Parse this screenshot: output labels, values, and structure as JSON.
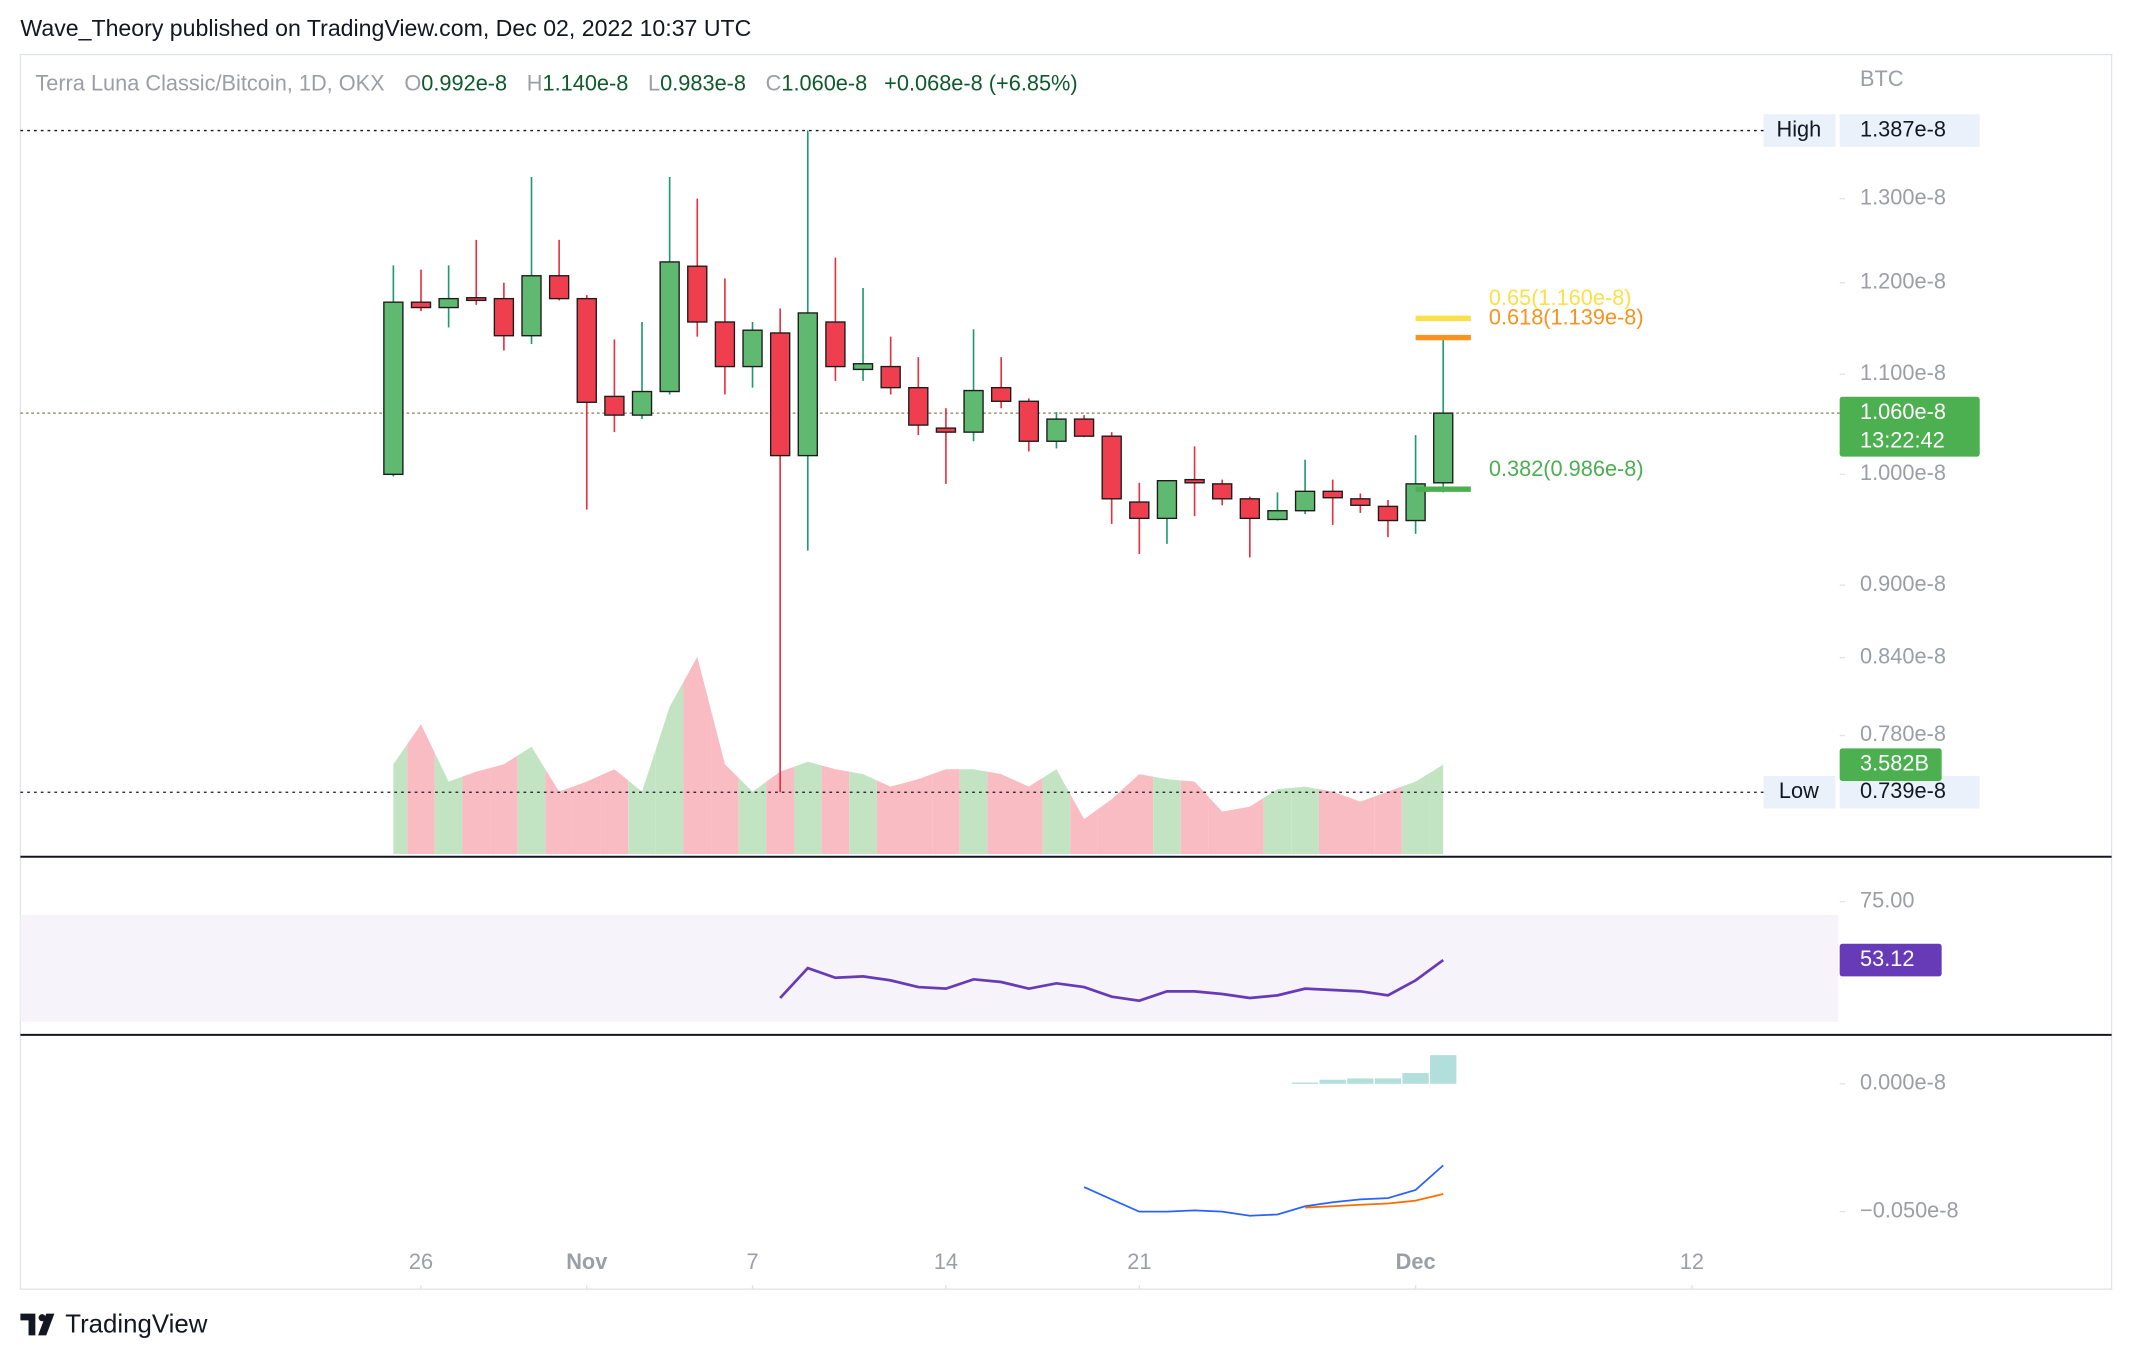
{
  "header": "Wave_Theory published on TradingView.com, Dec 02, 2022 10:37 UTC",
  "footer": "TradingView",
  "chart_data": {
    "type": "candlestick",
    "title": "Terra Luna Classic/Bitcoin, 1D, OKX",
    "legend": [
      {
        "key": "O",
        "value": "0.992e-8"
      },
      {
        "key": "H",
        "value": "1.140e-8"
      },
      {
        "key": "L",
        "value": "0.983e-8"
      },
      {
        "key": "C",
        "value": "1.060e-8"
      }
    ],
    "change": "+0.068e-8 (+6.85%)",
    "y_unit": "BTC",
    "log_scale": true,
    "ylim": [
      6.95e-09,
      1.491e-08
    ],
    "yticks": [
      {
        "value": 1.3e-08,
        "label": "1.300e-8"
      },
      {
        "value": 1.2e-08,
        "label": "1.200e-8"
      },
      {
        "value": 1.1e-08,
        "label": "1.100e-8"
      },
      {
        "value": 1e-08,
        "label": "1.000e-8"
      },
      {
        "value": 9e-09,
        "label": "0.900e-8"
      },
      {
        "value": 8.4e-09,
        "label": "0.840e-8"
      },
      {
        "value": 7.8e-09,
        "label": "0.780e-8"
      }
    ],
    "xlim": [
      -13.5,
      52.3
    ],
    "xticks": [
      {
        "value": 1,
        "label": "26"
      },
      {
        "value": 7,
        "label": "Nov"
      },
      {
        "value": 13,
        "label": "7"
      },
      {
        "value": 20,
        "label": "14"
      },
      {
        "value": 27,
        "label": "21"
      },
      {
        "value": 37,
        "label": "Dec"
      },
      {
        "value": 47,
        "label": "12"
      }
    ],
    "up_color": "#5fb970",
    "down_color": "#ef3f4f",
    "open": [
      1e-08,
      1.178e-08,
      1.172e-08,
      1.183e-08,
      1.182e-08,
      1.141e-08,
      1.208e-08,
      1.182e-08,
      1.077e-08,
      1.058e-08,
      1.082e-08,
      1.219e-08,
      1.156e-08,
      1.108e-08,
      1.144e-08,
      1.018e-08,
      1.156e-08,
      1.105e-08,
      1.108e-08,
      1.086e-08,
      1.045e-08,
      1.041e-08,
      1.086e-08,
      1.072e-08,
      1.032e-08,
      1.054e-08,
      1.037e-08,
      9.74e-09,
      9.59e-09,
      9.95e-09,
      9.91e-09,
      9.77e-09,
      9.58e-09,
      9.66e-09,
      9.84e-09,
      9.77e-09,
      9.7e-09,
      9.57e-09,
      9.92e-09
    ],
    "high": [
      1.22e-08,
      1.215e-08,
      1.22e-08,
      1.25e-08,
      1.2e-08,
      1.327e-08,
      1.25e-08,
      1.186e-08,
      1.137e-08,
      1.156e-08,
      1.327e-08,
      1.3e-08,
      1.205e-08,
      1.156e-08,
      1.171e-08,
      1.387e-08,
      1.229e-08,
      1.194e-08,
      1.14e-08,
      1.118e-08,
      1.065e-08,
      1.148e-08,
      1.118e-08,
      1.075e-08,
      1.061e-08,
      1.058e-08,
      1.041e-08,
      9.92e-09,
      9.94e-09,
      1.027e-08,
      9.95e-09,
      9.79e-09,
      9.83e-09,
      1.014e-08,
      9.95e-09,
      9.82e-09,
      9.76e-09,
      1.038e-08,
      1.14e-08
    ],
    "low": [
      9.98e-09,
      1.168e-08,
      1.15e-08,
      1.175e-08,
      1.125e-08,
      1.132e-08,
      1.18e-08,
      9.67e-09,
      1.041e-08,
      1.054e-08,
      1.079e-08,
      1.14e-08,
      1.079e-08,
      1.086e-08,
      7.39e-09,
      9.3e-09,
      1.093e-08,
      1.093e-08,
      1.079e-08,
      1.038e-08,
      9.91e-09,
      1.032e-08,
      1.065e-08,
      1.022e-08,
      1.025e-08,
      1.036e-08,
      9.54e-09,
      9.27e-09,
      9.36e-09,
      9.61e-09,
      9.71e-09,
      9.24e-09,
      9.57e-09,
      9.63e-09,
      9.53e-09,
      9.64e-09,
      9.42e-09,
      9.45e-09,
      9.83e-09
    ],
    "close": [
      1.178e-08,
      1.172e-08,
      1.182e-08,
      1.18e-08,
      1.141e-08,
      1.208e-08,
      1.182e-08,
      1.071e-08,
      1.058e-08,
      1.082e-08,
      1.224e-08,
      1.156e-08,
      1.108e-08,
      1.147e-08,
      1.018e-08,
      1.166e-08,
      1.108e-08,
      1.111e-08,
      1.086e-08,
      1.048e-08,
      1.041e-08,
      1.083e-08,
      1.072e-08,
      1.032e-08,
      1.054e-08,
      1.037e-08,
      9.77e-09,
      9.59e-09,
      9.94e-09,
      9.92e-09,
      9.77e-09,
      9.59e-09,
      9.66e-09,
      9.84e-09,
      9.78e-09,
      9.71e-09,
      9.57e-09,
      9.91e-09,
      1.06e-08
    ],
    "volume": {
      "values": [
        3600000000.0,
        5200000000.0,
        2900000000.0,
        3300000000.0,
        3600000000.0,
        4300000000.0,
        2500000000.0,
        2900000000.0,
        3400000000.0,
        2500000000.0,
        5900000000.0,
        7900000000.0,
        3600000000.0,
        2500000000.0,
        3300000000.0,
        3700000000.0,
        3400000000.0,
        3200000000.0,
        2700000000.0,
        3000000000.0,
        3400000000.0,
        3400000000.0,
        3200000000.0,
        2700000000.0,
        3400000000.0,
        1400000000.0,
        2200000000.0,
        3200000000.0,
        3000000000.0,
        2900000000.0,
        1700000000.0,
        1900000000.0,
        2600000000.0,
        2700000000.0,
        2500000000.0,
        2100000000.0,
        2500000000.0,
        2900000000.0,
        3582000000.0
      ],
      "value_labels": [
        null,
        null,
        null,
        null,
        null,
        null,
        null,
        null,
        null,
        null,
        null,
        null,
        null,
        null,
        null,
        null,
        null,
        null,
        null,
        null,
        null,
        null,
        null,
        null,
        null,
        null,
        null,
        null,
        null,
        null,
        null,
        null,
        null,
        null,
        null,
        null,
        null,
        null,
        "3.582B"
      ],
      "up_color": "#c3e4c3",
      "down_color": "#f9bcc3",
      "label_color": "#4caf50"
    },
    "high_marker": {
      "name": "High",
      "value": 1.387e-08,
      "label": "1.387e-8"
    },
    "low_marker": {
      "name": "Low",
      "value": 7.39e-09,
      "label": "0.739e-8"
    },
    "last_price": {
      "value": 1.06e-08,
      "label": "1.060e-8",
      "countdown": "13:22:42",
      "color": "#4caf50"
    },
    "fib_levels": [
      {
        "label": "0.65(1.160e-8)",
        "value": 1.16e-08,
        "color": "#fbe04a"
      },
      {
        "label": "0.618(1.139e-8)",
        "value": 1.139e-08,
        "color": "#f7931e"
      },
      {
        "label": "0.382(0.986e-8)",
        "value": 9.86e-09,
        "color": "#4caf50"
      }
    ],
    "rsi": {
      "values": [
        null,
        null,
        null,
        null,
        null,
        null,
        null,
        null,
        null,
        null,
        null,
        null,
        null,
        null,
        38.9,
        50.1,
        46.5,
        47.0,
        45.5,
        43.0,
        42.4,
        45.9,
        44.9,
        42.4,
        44.4,
        43.0,
        39.4,
        37.9,
        41.4,
        41.4,
        40.4,
        38.9,
        39.9,
        42.4,
        41.9,
        41.4,
        39.9,
        45.5,
        53.12
      ],
      "value_labels": [
        null,
        null,
        null,
        null,
        null,
        null,
        null,
        null,
        null,
        null,
        null,
        null,
        null,
        null,
        null,
        null,
        null,
        null,
        null,
        null,
        null,
        null,
        null,
        null,
        null,
        null,
        null,
        null,
        null,
        null,
        null,
        null,
        null,
        null,
        null,
        null,
        null,
        null,
        "53.12"
      ],
      "color": "#673ab7",
      "ylim": [
        25.6,
        91.3
      ],
      "yticks": [
        {
          "value": 75,
          "label": "75.00"
        }
      ],
      "band": [
        30,
        70
      ]
    },
    "macd": {
      "ylim": [
        -8.03e-10,
        1.86e-10
      ],
      "yticks": [
        {
          "value": 0,
          "label": "0.000e-8"
        },
        {
          "value": -5e-10,
          "label": "−0.050e-8"
        }
      ],
      "histogram": [
        null,
        null,
        null,
        null,
        null,
        null,
        null,
        null,
        null,
        null,
        null,
        null,
        null,
        null,
        null,
        null,
        null,
        null,
        null,
        null,
        null,
        null,
        null,
        null,
        null,
        null,
        null,
        null,
        null,
        null,
        null,
        null,
        null,
        5e-12,
        1.6e-11,
        2.1e-11,
        2.1e-11,
        4.2e-11,
        1.12e-10
      ],
      "macd": [
        null,
        null,
        null,
        null,
        null,
        null,
        null,
        null,
        null,
        null,
        null,
        null,
        null,
        null,
        null,
        null,
        null,
        null,
        null,
        null,
        null,
        null,
        null,
        null,
        null,
        -4.04e-10,
        -4.52e-10,
        -5e-10,
        -5e-10,
        -4.95e-10,
        -5e-10,
        -5.16e-10,
        -5.11e-10,
        -4.79e-10,
        -4.63e-10,
        -4.52e-10,
        -4.47e-10,
        -4.15e-10,
        -3.19e-10
      ],
      "signal": [
        null,
        null,
        null,
        null,
        null,
        null,
        null,
        null,
        null,
        null,
        null,
        null,
        null,
        null,
        null,
        null,
        null,
        null,
        null,
        null,
        null,
        null,
        null,
        null,
        null,
        null,
        null,
        null,
        null,
        null,
        null,
        null,
        null,
        -4.84e-10,
        -4.79e-10,
        -4.73e-10,
        -4.68e-10,
        -4.57e-10,
        -4.31e-10
      ],
      "histogram_color": "#b2dfdb",
      "macd_color": "#2962ff",
      "signal_color": "#ff6d00"
    }
  }
}
